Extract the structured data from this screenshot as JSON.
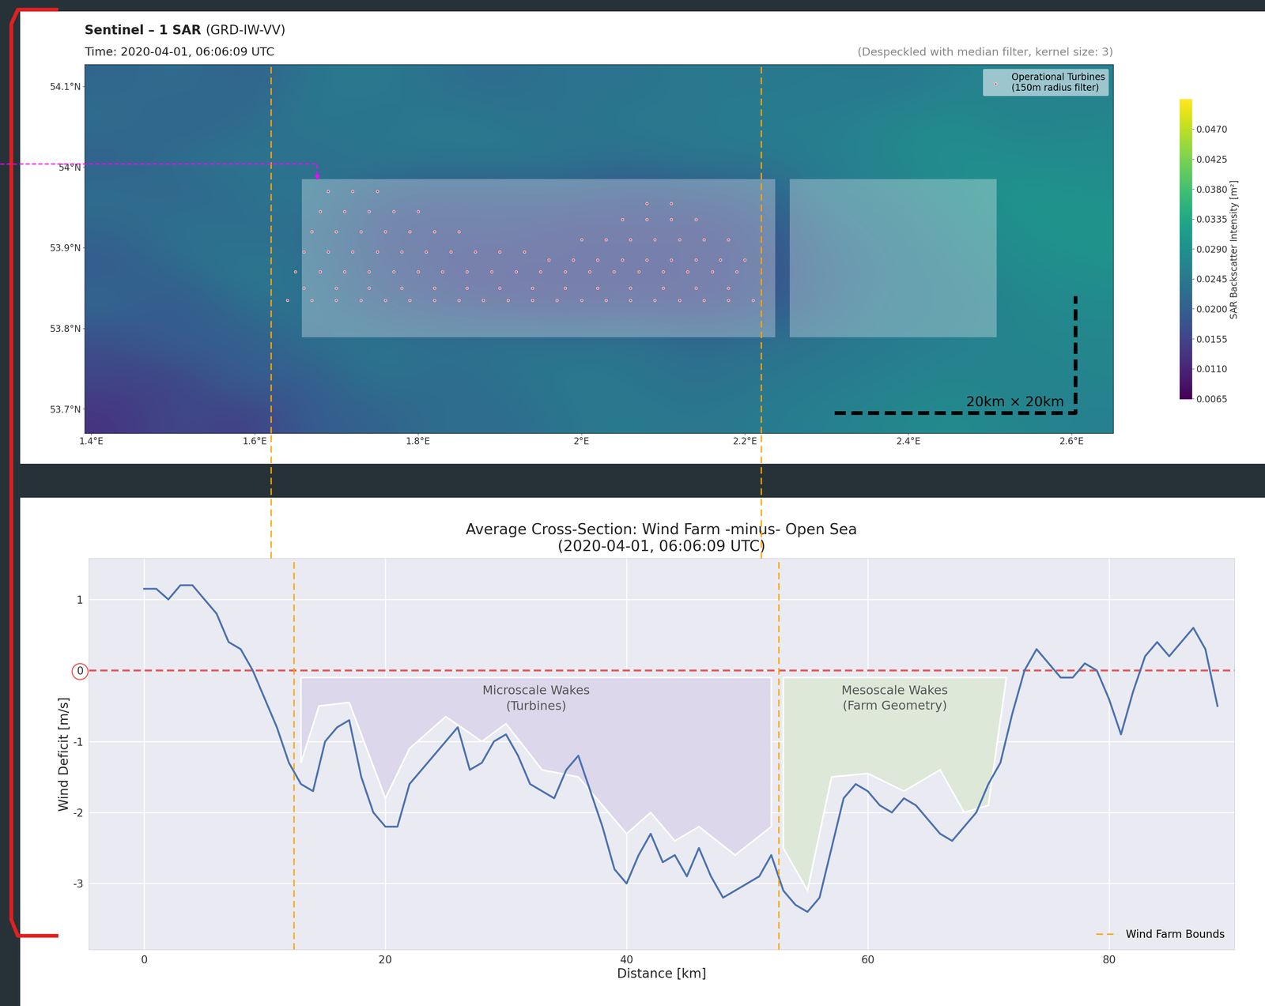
{
  "chart_data": [
    {
      "type": "heatmap",
      "title": "Sentinel – 1 SAR",
      "subtitle": "(GRD-IW-VV)",
      "time": "Time: 2020-04-01, 06:06:09 UTC",
      "processing": "(Despeckled with median filter, kernel size: 3)",
      "xlim": [
        1.392,
        2.651
      ],
      "ylim": [
        53.67,
        54.127
      ],
      "xticks": [
        {
          "value": 1.4,
          "label": "1.4°E"
        },
        {
          "value": 1.6,
          "label": "1.6°E"
        },
        {
          "value": 1.8,
          "label": "1.8°E"
        },
        {
          "value": 2.0,
          "label": "2°E"
        },
        {
          "value": 2.2,
          "label": "2.2°E"
        },
        {
          "value": 2.4,
          "label": "2.4°E"
        },
        {
          "value": 2.6,
          "label": "2.6°E"
        }
      ],
      "yticks": [
        {
          "value": 53.7,
          "label": "53.7°N"
        },
        {
          "value": 53.8,
          "label": "53.8°N"
        },
        {
          "value": 53.9,
          "label": "53.9°N"
        },
        {
          "value": 54.0,
          "label": "54°N"
        },
        {
          "value": 54.1,
          "label": "54.1°N"
        }
      ],
      "grid": false,
      "cells": [
        [
          0.021,
          0.023,
          0.02,
          0.024,
          0.025,
          0.023,
          0.022,
          0.024,
          0.023,
          0.025,
          0.024,
          0.025,
          0.024,
          0.026,
          0.027,
          0.026
        ],
        [
          0.023,
          0.02,
          0.022,
          0.025,
          0.023,
          0.025,
          0.024,
          0.023,
          0.025,
          0.024,
          0.026,
          0.025,
          0.027,
          0.028,
          0.026,
          0.027
        ],
        [
          0.02,
          0.023,
          0.024,
          0.022,
          0.025,
          0.024,
          0.025,
          0.024,
          0.023,
          0.025,
          0.024,
          0.026,
          0.027,
          0.029,
          0.028,
          0.028
        ],
        [
          0.023,
          0.021,
          0.023,
          0.025,
          0.02,
          0.019,
          0.019,
          0.02,
          0.018,
          0.019,
          0.02,
          0.025,
          0.026,
          0.028,
          0.03,
          0.029
        ],
        [
          0.021,
          0.024,
          0.022,
          0.023,
          0.018,
          0.017,
          0.018,
          0.016,
          0.017,
          0.016,
          0.018,
          0.023,
          0.025,
          0.027,
          0.029,
          0.03
        ],
        [
          0.019,
          0.022,
          0.025,
          0.023,
          0.019,
          0.017,
          0.016,
          0.017,
          0.016,
          0.017,
          0.017,
          0.022,
          0.024,
          0.026,
          0.028,
          0.029
        ],
        [
          0.022,
          0.018,
          0.023,
          0.024,
          0.02,
          0.018,
          0.017,
          0.016,
          0.017,
          0.016,
          0.018,
          0.022,
          0.025,
          0.025,
          0.027,
          0.028
        ],
        [
          0.017,
          0.021,
          0.019,
          0.023,
          0.024,
          0.023,
          0.024,
          0.023,
          0.024,
          0.022,
          0.023,
          0.024,
          0.025,
          0.026,
          0.027,
          0.027
        ],
        [
          0.016,
          0.015,
          0.021,
          0.019,
          0.024,
          0.022,
          0.023,
          0.025,
          0.024,
          0.023,
          0.024,
          0.025,
          0.026,
          0.027,
          0.026,
          0.027
        ],
        [
          0.013,
          0.017,
          0.014,
          0.02,
          0.02,
          0.023,
          0.022,
          0.024,
          0.025,
          0.024,
          0.025,
          0.026,
          0.027,
          0.028,
          0.027,
          0.026
        ]
      ],
      "colorbar": {
        "label": "SAR Backscatter Intensity [m²]",
        "range": [
          0.0064,
          0.0515
        ],
        "ticks": [
          0.0065,
          {
            "value": 0.011,
            "label": "0.0110"
          },
          0.0155,
          {
            "value": 0.02,
            "label": "0.0200"
          },
          0.0245,
          {
            "value": 0.029,
            "label": "0.0290"
          },
          0.0335,
          {
            "value": 0.038,
            "label": "0.0380"
          },
          0.0425,
          {
            "value": 0.047,
            "label": "0.0470"
          }
        ]
      },
      "highlight_boxes": [
        {
          "lon": [
            1.658,
            2.237
          ],
          "lat": [
            53.789,
            53.985
          ]
        },
        {
          "lon": [
            2.255,
            2.508
          ],
          "lat": [
            53.789,
            53.985
          ]
        }
      ],
      "turbines": {
        "name": "Operational Turbines\n(150m radius filter)",
        "color": "#e0505a",
        "rows": [
          {
            "lat": 53.97,
            "lon": [
              1.69,
              1.72,
              1.75
            ]
          },
          {
            "lat": 53.945,
            "lon": [
              1.68,
              1.71,
              1.74,
              1.77,
              1.8
            ]
          },
          {
            "lat": 53.92,
            "lon": [
              1.67,
              1.7,
              1.73,
              1.76,
              1.79,
              1.82,
              1.85
            ]
          },
          {
            "lat": 53.895,
            "lon": [
              1.66,
              1.69,
              1.72,
              1.75,
              1.78,
              1.81,
              1.84,
              1.87,
              1.9,
              1.93
            ]
          },
          {
            "lat": 53.87,
            "lon": [
              1.65,
              1.68,
              1.71,
              1.74,
              1.77,
              1.8,
              1.83,
              1.86,
              1.89,
              1.92,
              1.95,
              1.98,
              2.01,
              2.04,
              2.07,
              2.1,
              2.13,
              2.16,
              2.19
            ]
          },
          {
            "lat": 53.85,
            "lon": [
              1.66,
              1.7,
              1.74,
              1.78,
              1.82,
              1.86,
              1.9,
              1.94,
              1.98,
              2.02,
              2.06,
              2.1,
              2.14,
              2.18
            ]
          },
          {
            "lat": 53.835,
            "lon": [
              1.64,
              1.67,
              1.7,
              1.73,
              1.76,
              1.79,
              1.82,
              1.85,
              1.88,
              1.91,
              1.94,
              1.97,
              2.0,
              2.03,
              2.06,
              2.09,
              2.12,
              2.15,
              2.18,
              2.21
            ]
          },
          {
            "lat": 53.955,
            "lon": [
              2.08,
              2.11
            ]
          },
          {
            "lat": 53.935,
            "lon": [
              2.05,
              2.08,
              2.11,
              2.14
            ]
          },
          {
            "lat": 53.91,
            "lon": [
              2.0,
              2.03,
              2.06,
              2.09,
              2.12,
              2.15,
              2.18
            ]
          },
          {
            "lat": 53.885,
            "lon": [
              1.96,
              1.99,
              2.02,
              2.05,
              2.08,
              2.11,
              2.14,
              2.17,
              2.2
            ]
          }
        ]
      },
      "legend": "upper right",
      "bounds_lon": [
        1.62,
        2.22
      ],
      "scale_bar": {
        "label": "20km × 20km",
        "lon": [
          2.31,
          2.605,
          2.605
        ],
        "lat": [
          53.695,
          53.695,
          53.84
        ]
      }
    },
    {
      "type": "line",
      "title": "Average Cross-Section: Wind Farm -minus- Open Sea\n(2020-04-01, 06:06:09 UTC)",
      "x_label": "Distance [km]",
      "y_label": "Wind Deficit [m/s]",
      "xlim": [
        -4.6,
        90.4
      ],
      "ylim": [
        -3.93,
        1.58
      ],
      "xticks": [
        0,
        20,
        40,
        60,
        80
      ],
      "yticks": [
        -3,
        -2,
        -1,
        0,
        1
      ],
      "grid": true,
      "x": [
        0,
        1,
        2,
        3,
        4,
        5,
        6,
        7,
        8,
        9,
        10,
        11,
        12,
        13,
        14,
        15,
        16,
        17,
        18,
        19,
        20,
        21,
        22,
        23,
        24,
        25,
        26,
        27,
        28,
        29,
        30,
        31,
        32,
        33,
        34,
        35,
        36,
        37,
        38,
        39,
        40,
        41,
        42,
        43,
        44,
        45,
        46,
        47,
        48,
        49,
        50,
        51,
        52,
        53,
        54,
        55,
        56,
        57,
        58,
        59,
        60,
        61,
        62,
        63,
        64,
        65,
        66,
        67,
        68,
        69,
        70,
        71,
        72,
        73,
        74,
        75,
        76,
        77,
        78,
        79,
        80,
        81,
        82,
        83,
        84,
        85,
        86,
        87,
        88,
        89
      ],
      "series": [
        {
          "color": "#4c72b0",
          "values": [
            1.15,
            1.15,
            1.0,
            1.2,
            1.2,
            1.0,
            0.8,
            0.4,
            0.3,
            0.0,
            -0.4,
            -0.8,
            -1.3,
            -1.6,
            -1.7,
            -1.0,
            -0.8,
            -0.7,
            -1.5,
            -2.0,
            -2.2,
            -2.2,
            -1.6,
            -1.4,
            -1.2,
            -1.0,
            -0.8,
            -1.4,
            -1.3,
            -1.0,
            -0.9,
            -1.2,
            -1.6,
            -1.7,
            -1.8,
            -1.4,
            -1.2,
            -1.7,
            -2.2,
            -2.8,
            -3.0,
            -2.6,
            -2.3,
            -2.7,
            -2.6,
            -2.9,
            -2.5,
            -2.9,
            -3.2,
            -3.1,
            -3.0,
            -2.9,
            -2.6,
            -3.1,
            -3.3,
            -3.4,
            -3.2,
            -2.5,
            -1.8,
            -1.6,
            -1.7,
            -1.9,
            -2.0,
            -1.8,
            -1.9,
            -2.1,
            -2.3,
            -2.4,
            -2.2,
            -2.0,
            -1.6,
            -1.3,
            -0.6,
            0.0,
            0.3,
            0.1,
            -0.1,
            -0.1,
            0.1,
            0.0,
            -0.4,
            -0.9,
            -0.3,
            0.2,
            0.4,
            0.2,
            0.4,
            0.6,
            0.3,
            -0.5
          ]
        }
      ],
      "reference_line": 0,
      "bounds": {
        "name": "Wind Farm Bounds",
        "color": "orange",
        "x": [
          12.4,
          52.6
        ]
      },
      "legend": "lower right",
      "areas": [
        {
          "label": "Microscale Wakes",
          "sublabel": "(Turbines)",
          "color": "#dcd7ea",
          "x": [
            13,
            13,
            14.5,
            17,
            20,
            22,
            25,
            28,
            30,
            33,
            36,
            40,
            42,
            44,
            46,
            49,
            52,
            52
          ],
          "y": [
            -0.1,
            -1.3,
            -0.5,
            -0.45,
            -1.8,
            -1.1,
            -0.65,
            -1.0,
            -0.75,
            -1.4,
            -1.5,
            -2.3,
            -2.0,
            -2.4,
            -2.2,
            -2.6,
            -2.2,
            -0.1
          ]
        },
        {
          "label": "Mesoscale Wakes",
          "sublabel": "(Farm Geometry)",
          "color": "#dde8d9",
          "x": [
            53,
            53,
            55,
            57,
            60,
            63,
            66,
            68,
            70,
            71.5
          ],
          "y": [
            -0.1,
            -2.5,
            -3.1,
            -1.5,
            -1.45,
            -1.7,
            -1.4,
            -2.0,
            -1.9,
            -0.1
          ]
        }
      ]
    }
  ]
}
